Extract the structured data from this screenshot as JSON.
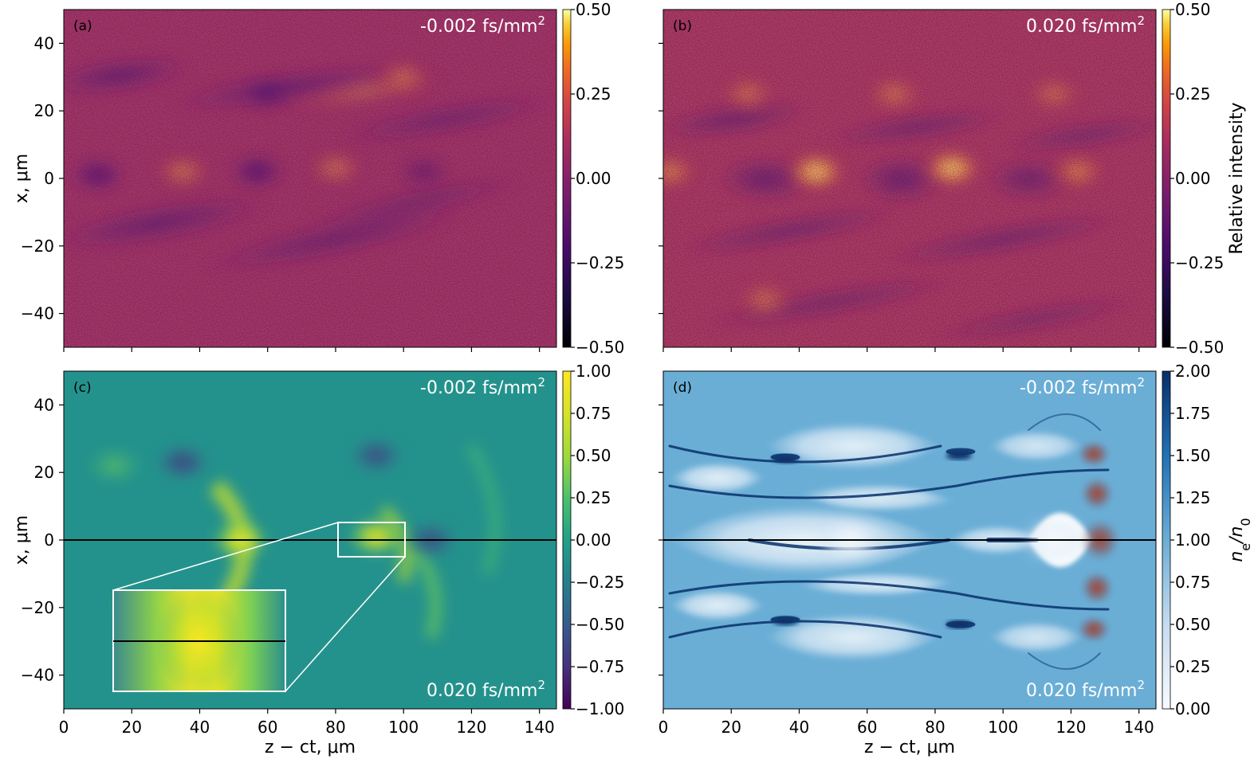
{
  "figure": {
    "y_axis_label": "x, μm",
    "x_axis_label": "z − ct, μm"
  },
  "chart_data": [
    {
      "type": "heatmap",
      "panel": "(a)",
      "title": "-0.002 fs/mm2",
      "annotations": [
        "-0.002 fs/mm2"
      ],
      "colormap": "inferno",
      "xlim": [
        0,
        145
      ],
      "ylim": [
        -50,
        50
      ],
      "yticks": [
        40,
        20,
        0,
        -20,
        -40
      ],
      "colorbar": {
        "label": "",
        "range": [
          -0.5,
          0.5
        ],
        "ticks": [
          "0.50",
          "0.25",
          "0.00",
          "−0.25",
          "−0.50"
        ]
      },
      "features": [
        {
          "z": 10,
          "x": 1,
          "value": -0.25
        },
        {
          "z": 35,
          "x": 2,
          "value": 0.22
        },
        {
          "z": 57,
          "x": 2,
          "value": -0.26
        },
        {
          "z": 80,
          "x": 3,
          "value": 0.2
        },
        {
          "z": 106,
          "x": 2,
          "value": -0.12
        },
        {
          "z": 100,
          "x": 30,
          "value": 0.18
        },
        {
          "z": 60,
          "x": 25,
          "value": -0.15
        }
      ]
    },
    {
      "type": "heatmap",
      "panel": "(b)",
      "title": "0.020 fs/mm2",
      "annotations": [
        "0.020 fs/mm2"
      ],
      "colormap": "inferno",
      "xlim": [
        0,
        145
      ],
      "ylim": [
        -50,
        50
      ],
      "yticks": [
        40,
        20,
        0,
        -20,
        -40
      ],
      "colorbar": {
        "label": "Relative intensity",
        "range": [
          -0.5,
          0.5
        ],
        "ticks": [
          "0.50",
          "0.25",
          "0.00",
          "−0.25",
          "−0.50"
        ]
      },
      "features": [
        {
          "z": 2,
          "x": 2,
          "value": 0.3
        },
        {
          "z": 45,
          "x": 2,
          "value": 0.45
        },
        {
          "z": 85,
          "x": 3,
          "value": 0.45
        },
        {
          "z": 122,
          "x": 2,
          "value": 0.3
        },
        {
          "z": 25,
          "x": 25,
          "value": 0.2
        },
        {
          "z": 68,
          "x": 25,
          "value": 0.22
        },
        {
          "z": 115,
          "x": 25,
          "value": 0.18
        },
        {
          "z": 30,
          "x": -36,
          "value": 0.2
        }
      ]
    },
    {
      "type": "heatmap",
      "panel": "(c)",
      "annotations": [
        "-0.002 fs/mm2",
        "0.020 fs/mm2"
      ],
      "colormap": "viridis",
      "xlim": [
        0,
        145
      ],
      "ylim": [
        -50,
        50
      ],
      "xticks": [
        0,
        20,
        40,
        60,
        80,
        100,
        120,
        140
      ],
      "yticks": [
        40,
        20,
        0,
        -20,
        -40
      ],
      "colorbar": {
        "label": "",
        "range": [
          -1,
          1
        ],
        "ticks": [
          "1.00",
          "0.75",
          "0.50",
          "0.25",
          "0.00",
          "−0.25",
          "−0.50",
          "−0.75",
          "−1.00"
        ]
      },
      "horizontal_line_x": 0,
      "inset_region": {
        "z": [
          81,
          101
        ],
        "x": [
          -5,
          5
        ]
      },
      "features": [
        {
          "z": 52,
          "x": 0,
          "value": 0.8
        },
        {
          "z": 92,
          "x": 1,
          "value": 0.9
        },
        {
          "z": 35,
          "x": 23,
          "value": -0.7
        },
        {
          "z": 92,
          "x": 25,
          "value": -0.6
        },
        {
          "z": 108,
          "x": 0,
          "value": -0.6
        },
        {
          "z": 15,
          "x": 22,
          "value": 0.5
        }
      ]
    },
    {
      "type": "heatmap",
      "panel": "(d)",
      "annotations": [
        "-0.002 fs/mm2",
        "0.020 fs/mm2"
      ],
      "colormap": "Blues",
      "xlim": [
        0,
        145
      ],
      "ylim": [
        -50,
        50
      ],
      "xticks": [
        0,
        20,
        40,
        60,
        80,
        100,
        120,
        140
      ],
      "yticks": [
        40,
        20,
        0,
        -20,
        -40
      ],
      "colorbar": {
        "label": "ne/n0",
        "range": [
          0,
          2
        ],
        "ticks": [
          "2.00",
          "1.75",
          "1.50",
          "1.25",
          "1.00",
          "0.75",
          "0.50",
          "0.25",
          "0.00"
        ]
      },
      "horizontal_line_x": 0,
      "laser_envelope_z": [
        120,
        135
      ],
      "features": [
        {
          "z": 36,
          "x": 24,
          "value": 1.9
        },
        {
          "z": 87,
          "x": 25,
          "value": 1.9
        },
        {
          "z": 36,
          "x": -24,
          "value": 1.9
        },
        {
          "z": 87,
          "x": -25,
          "value": 1.9
        },
        {
          "z": 55,
          "x": 0,
          "value": 0.1
        },
        {
          "z": 115,
          "x": 0,
          "value": 0.0
        }
      ]
    }
  ]
}
